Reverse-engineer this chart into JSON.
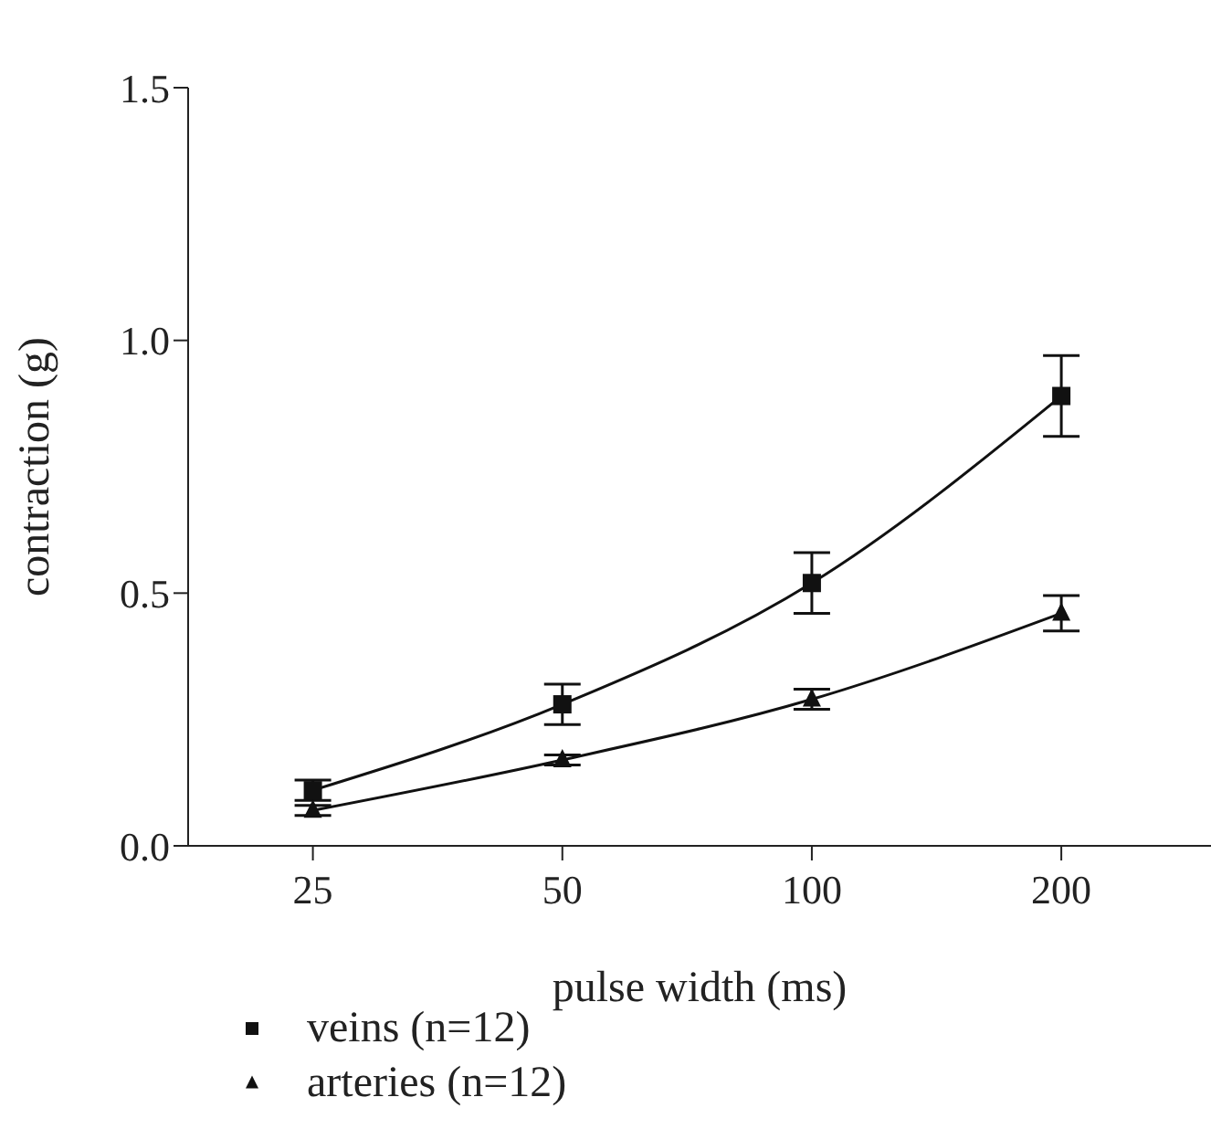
{
  "chart_data": {
    "type": "line",
    "xlabel": "pulse width (ms)",
    "ylabel": "contraction (g)",
    "categories": [
      "25",
      "50",
      "100",
      "200"
    ],
    "ylim": [
      0,
      1.5
    ],
    "yticks": [
      {
        "value": 0,
        "label": "0.0"
      },
      {
        "value": 0.5,
        "label": "0.5"
      },
      {
        "value": 1,
        "label": "1.0"
      },
      {
        "value": 1.5,
        "label": "1.5"
      }
    ],
    "series": [
      {
        "name": "veins (n=12)",
        "color": "#111111",
        "marker": "square",
        "values": [
          0.11,
          0.28,
          0.52,
          0.89
        ],
        "errors": [
          0.02,
          0.04,
          0.06,
          0.08
        ]
      },
      {
        "name": "arteries (n=12)",
        "color": "#111111",
        "marker": "triangle",
        "values": [
          0.07,
          0.17,
          0.29,
          0.46
        ],
        "errors": [
          0.01,
          0.01,
          0.02,
          0.035
        ]
      }
    ],
    "grid": false,
    "legend": "bottom left"
  }
}
